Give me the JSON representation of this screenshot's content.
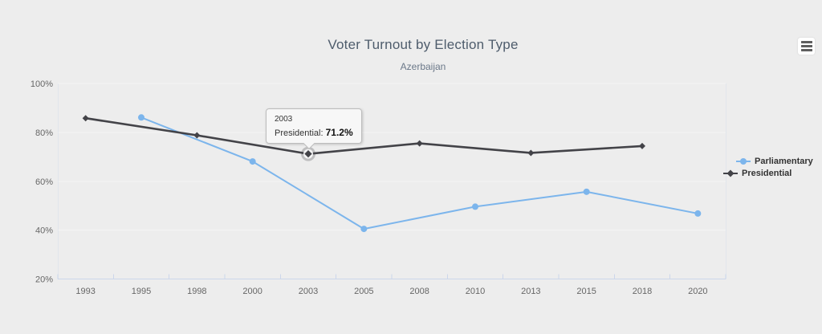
{
  "colors": {
    "background": "#ededed",
    "grid_line": "#f5f5f5",
    "axis_line": "#ccd6eb",
    "axis_label": "#666666",
    "title": "#4e5c6c",
    "subtitle": "#6b7889",
    "legend_text": "#333333",
    "tooltip_bg": "#f7f7f7",
    "tooltip_border": "#bcbcbc"
  },
  "chart_data": {
    "type": "line",
    "title": "Voter Turnout by Election Type",
    "subtitle": "Azerbaijan",
    "categories": [
      "1993",
      "1995",
      "1998",
      "2000",
      "2003",
      "2005",
      "2008",
      "2010",
      "2013",
      "2015",
      "2018",
      "2020"
    ],
    "series": [
      {
        "name": "Parliamentary",
        "color": "#7cb5ec",
        "marker": "circle",
        "values": [
          null,
          86.1,
          null,
          68.1,
          null,
          40.5,
          null,
          49.6,
          null,
          55.7,
          null,
          46.8
        ]
      },
      {
        "name": "Presidential",
        "color": "#434348",
        "marker": "diamond",
        "values": [
          85.8,
          null,
          78.8,
          null,
          71.2,
          null,
          75.5,
          null,
          71.6,
          null,
          74.4,
          null
        ]
      }
    ],
    "y_axis": {
      "min": 20,
      "max": 100,
      "tick_interval": 20,
      "tick_labels": [
        "20%",
        "40%",
        "60%",
        "80%",
        "100%"
      ]
    },
    "grid": "horizontal",
    "legend_position": "right"
  },
  "tooltip": {
    "category": "2003",
    "series": "Presidential",
    "separator": ":",
    "value": "71.2%",
    "series_index": 1,
    "point_index": 4
  },
  "context_menu": {
    "icon": "hamburger-menu"
  }
}
